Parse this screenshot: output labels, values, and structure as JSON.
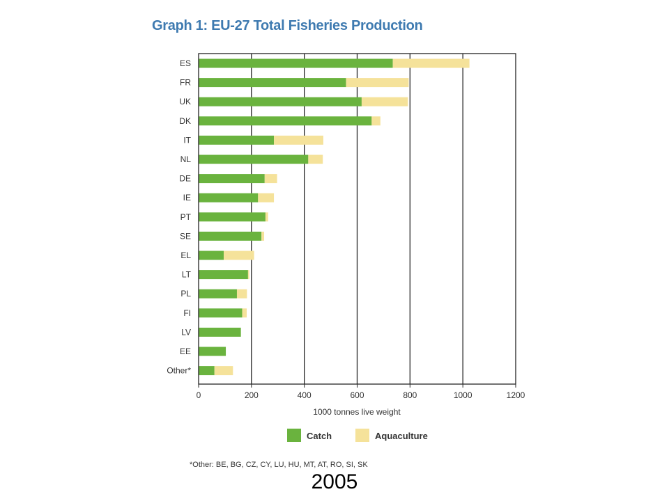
{
  "chart_data": {
    "type": "bar",
    "orientation": "horizontal",
    "stacked": true,
    "title": "Graph 1: EU-27 Total Fisheries Production",
    "xlabel": "1000 tonnes live weight",
    "ylabel": "",
    "xlim": [
      0,
      1200
    ],
    "xticks": [
      0,
      200,
      400,
      600,
      800,
      1000,
      1200
    ],
    "grid": true,
    "legend_position": "bottom",
    "categories": [
      "ES",
      "FR",
      "UK",
      "DK",
      "IT",
      "NL",
      "DE",
      "IE",
      "PT",
      "SE",
      "EL",
      "LT",
      "PL",
      "FI",
      "LV",
      "EE",
      "Other*"
    ],
    "series": [
      {
        "name": "Catch",
        "color": "#6ab33e",
        "values": [
          735,
          558,
          617,
          655,
          285,
          415,
          250,
          225,
          253,
          238,
          95,
          187,
          145,
          165,
          160,
          103,
          60
        ]
      },
      {
        "name": "Aquaculture",
        "color": "#f5e29a",
        "values": [
          290,
          237,
          175,
          33,
          187,
          55,
          47,
          60,
          10,
          10,
          115,
          5,
          38,
          17,
          0,
          0,
          70
        ]
      }
    ],
    "footnote": "*Other: BE, BG, CZ, CY, LU, HU, MT, AT, RO, SI, SK"
  },
  "caption": "2005"
}
